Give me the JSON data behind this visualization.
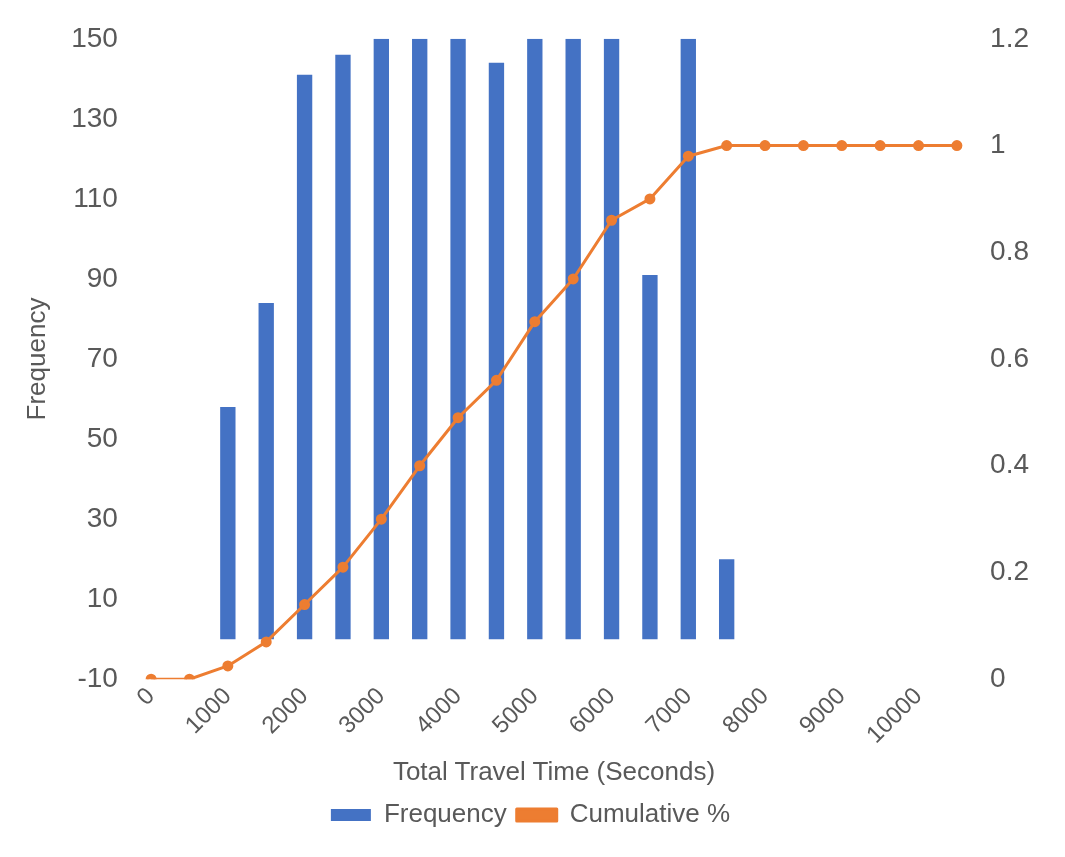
{
  "chart_data": {
    "type": "bar",
    "xlabel": "Total Travel Time (Seconds)",
    "ylabel": "Frequency",
    "categories": [
      "0",
      null,
      "1000",
      null,
      "2000",
      null,
      "3000",
      null,
      "4000",
      null,
      "5000",
      null,
      "6000",
      null,
      "7000",
      null,
      "8000",
      null,
      "9000",
      null,
      "10000",
      null
    ],
    "series": [
      {
        "name": "Frequency",
        "color": "#4472c4",
        "values": [
          0,
          0,
          58,
          84,
          141,
          146,
          150,
          150,
          150,
          144,
          150,
          150,
          150,
          91,
          150,
          20,
          0,
          0,
          0,
          0,
          0,
          0
        ]
      },
      {
        "name": "Cumulative %",
        "type": "line",
        "axis": "y2",
        "color": "#ed7d31",
        "marker": "circle",
        "values": [
          0,
          0,
          0.025,
          0.07,
          0.14,
          0.21,
          0.3,
          0.4,
          0.49,
          0.56,
          0.67,
          0.75,
          0.86,
          0.9,
          0.98,
          1,
          1,
          1,
          1,
          1,
          1,
          1
        ]
      }
    ],
    "ylim": [
      -10,
      150
    ],
    "yticks": [
      -10,
      10,
      30,
      50,
      70,
      90,
      110,
      130,
      150
    ],
    "y2lim": [
      0,
      1.2
    ],
    "y2ticks": [
      0,
      0.2,
      0.4,
      0.6,
      0.8,
      1,
      1.2
    ],
    "grid": false,
    "legend": "bottom"
  }
}
